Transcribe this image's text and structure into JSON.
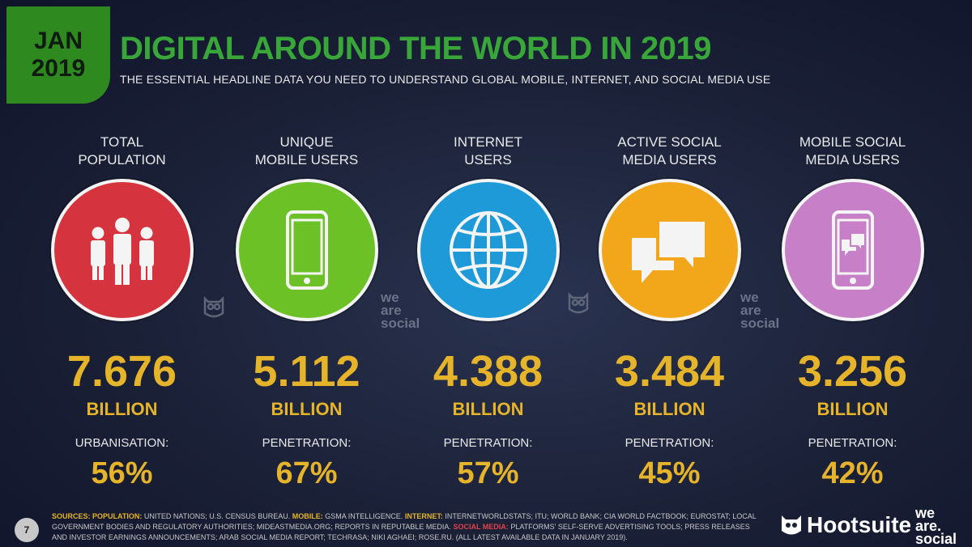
{
  "header": {
    "month": "JAN",
    "year": "2019",
    "title": "DIGITAL AROUND THE WORLD IN 2019",
    "subtitle": "THE ESSENTIAL HEADLINE DATA YOU NEED TO UNDERSTAND GLOBAL MOBILE, INTERNET, AND SOCIAL MEDIA USE"
  },
  "stats": [
    {
      "label_line1": "TOTAL",
      "label_line2": "POPULATION",
      "value": "7.676",
      "unit": "BILLION",
      "metric_label": "URBANISATION:",
      "metric_value": "56%",
      "color": "#d5343e",
      "icon": "people-icon"
    },
    {
      "label_line1": "UNIQUE",
      "label_line2": "MOBILE USERS",
      "value": "5.112",
      "unit": "BILLION",
      "metric_label": "PENETRATION:",
      "metric_value": "67%",
      "color": "#6cc127",
      "icon": "mobile-phone-icon"
    },
    {
      "label_line1": "INTERNET",
      "label_line2": "USERS",
      "value": "4.388",
      "unit": "BILLION",
      "metric_label": "PENETRATION:",
      "metric_value": "57%",
      "color": "#1e9ad9",
      "icon": "globe-icon"
    },
    {
      "label_line1": "ACTIVE SOCIAL",
      "label_line2": "MEDIA USERS",
      "value": "3.484",
      "unit": "BILLION",
      "metric_label": "PENETRATION:",
      "metric_value": "45%",
      "color": "#f2a71b",
      "icon": "chat-bubbles-icon"
    },
    {
      "label_line1": "MOBILE SOCIAL",
      "label_line2": "MEDIA USERS",
      "value": "3.256",
      "unit": "BILLION",
      "metric_label": "PENETRATION:",
      "metric_value": "42%",
      "color": "#c77fc7",
      "icon": "mobile-chat-icon"
    }
  ],
  "watermarks": {
    "we": "we",
    "are": "are",
    "social": "social"
  },
  "footer": {
    "page_number": "7",
    "sources_label": "SOURCES:",
    "population_label": "POPULATION:",
    "population_text": "UNITED NATIONS; U.S. CENSUS BUREAU.",
    "mobile_label": "MOBILE:",
    "mobile_text": "GSMA INTELLIGENCE.",
    "internet_label": "INTERNET:",
    "internet_text": "INTERNETWORLDSTATS; ITU; WORLD BANK; CIA WORLD FACTBOOK; EUROSTAT; LOCAL GOVERNMENT BODIES AND REGULATORY AUTHORITIES; MIDEASTMEDIA.ORG; REPORTS IN REPUTABLE MEDIA.",
    "social_label": "SOCIAL MEDIA:",
    "social_text": "PLATFORMS' SELF-SERVE ADVERTISING TOOLS; PRESS RELEASES AND INVESTOR EARNINGS ANNOUNCEMENTS; ARAB SOCIAL MEDIA REPORT; TECHRASA; NIKI AGHAEI; ROSE.RU. (ALL LATEST AVAILABLE DATA IN JANUARY 2019).",
    "brand_hootsuite": "Hootsuite",
    "brand_we": "we",
    "brand_are": "are.",
    "brand_social": "social"
  }
}
